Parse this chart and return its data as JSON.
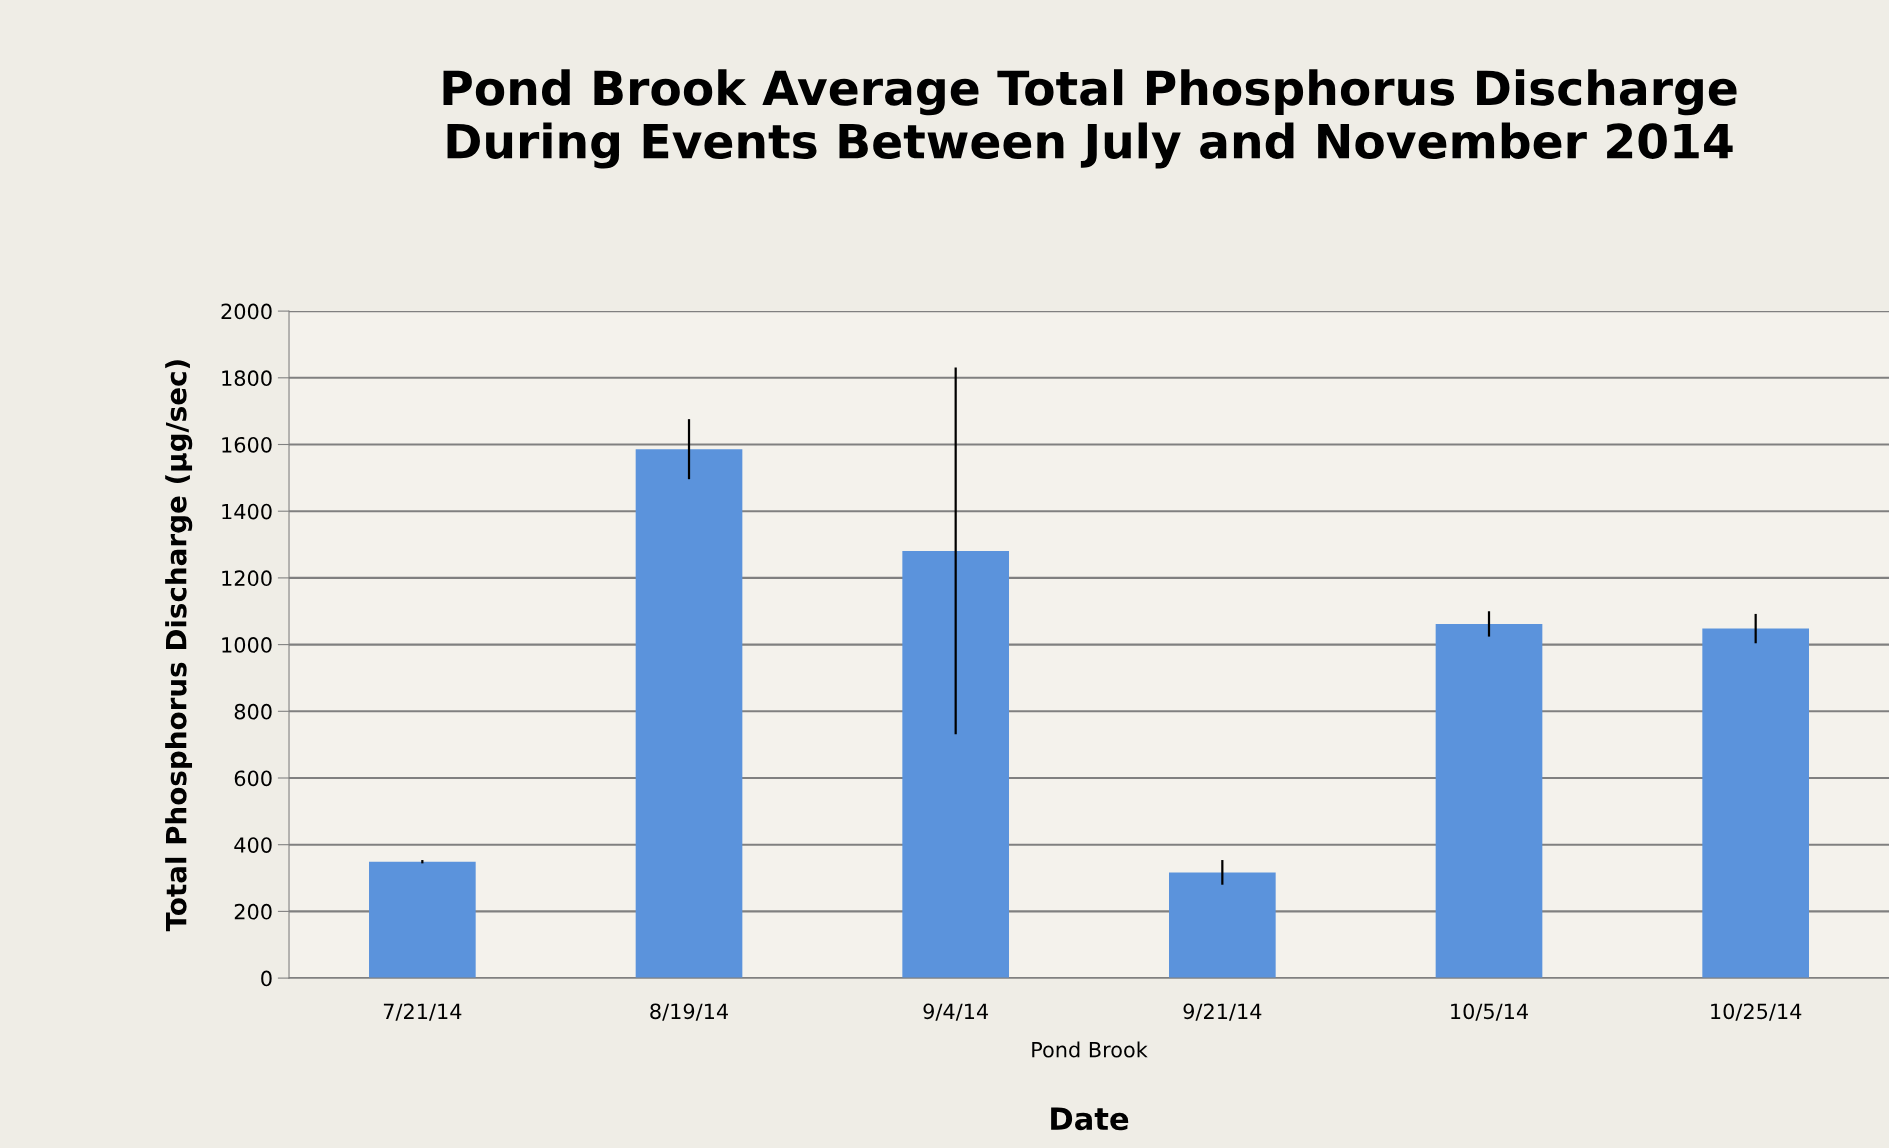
{
  "chart_data": {
    "type": "bar",
    "title": "Pond Brook Average Total Phosphorus Discharge\nDuring Events Between July and November 2014",
    "xlabel": "Date",
    "ylabel": "Total Phosphorus Discharge (µg/sec)",
    "categories": [
      "7/21/14",
      "8/19/14",
      "9/4/14",
      "9/21/14",
      "10/5/14",
      "10/25/14"
    ],
    "values": [
      349,
      1586,
      1281,
      317,
      1062,
      1048
    ],
    "errors": [
      5,
      90,
      550,
      37,
      38,
      44
    ],
    "color": "#5b93dc",
    "ylim": [
      0,
      2000
    ],
    "yticks": [
      0,
      200,
      400,
      600,
      800,
      1000,
      1200,
      1400,
      1600,
      1800,
      2000
    ],
    "grid": "y",
    "annotations": [
      "Pond Brook"
    ]
  }
}
